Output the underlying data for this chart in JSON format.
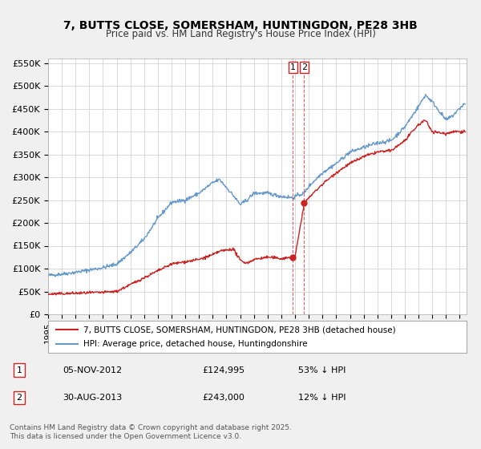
{
  "title": "7, BUTTS CLOSE, SOMERSHAM, HUNTINGDON, PE28 3HB",
  "subtitle": "Price paid vs. HM Land Registry's House Price Index (HPI)",
  "legend_entry1": "7, BUTTS CLOSE, SOMERSHAM, HUNTINGDON, PE28 3HB (detached house)",
  "legend_entry2": "HPI: Average price, detached house, Huntingdonshire",
  "footnote": "Contains HM Land Registry data © Crown copyright and database right 2025.\nThis data is licensed under the Open Government Licence v3.0.",
  "hpi_color": "#6699cc",
  "price_color": "#cc2222",
  "annotation1_date": "05-NOV-2012",
  "annotation1_price": "£124,995",
  "annotation1_hpi": "53% ↓ HPI",
  "annotation2_date": "30-AUG-2013",
  "annotation2_price": "£243,000",
  "annotation2_hpi": "12% ↓ HPI",
  "vline_x1": 2012.846,
  "vline_x2": 2013.663,
  "ylim": [
    0,
    560000
  ],
  "xlim_start": 1995,
  "xlim_end": 2025.5,
  "yticks": [
    0,
    50000,
    100000,
    150000,
    200000,
    250000,
    300000,
    350000,
    400000,
    450000,
    500000,
    550000
  ],
  "ytick_labels": [
    "£0",
    "£50K",
    "£100K",
    "£150K",
    "£200K",
    "£250K",
    "£300K",
    "£350K",
    "£400K",
    "£450K",
    "£500K",
    "£550K"
  ],
  "background_color": "#f0f0f0",
  "plot_bg_color": "#ffffff",
  "grid_color": "#cccccc"
}
